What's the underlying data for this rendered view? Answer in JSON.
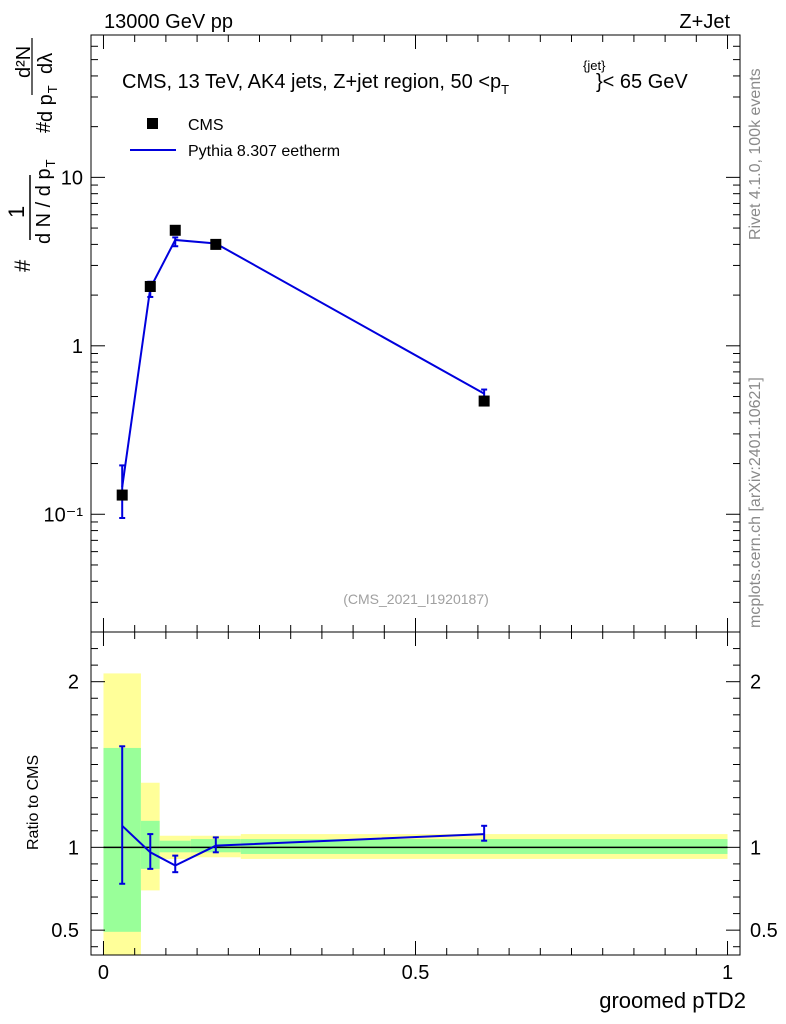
{
  "header": {
    "energy": "13000 GeV pp",
    "process": "Z+Jet"
  },
  "side_labels": {
    "rivet": "Rivet 4.1.0,  100k events",
    "site": "mcplots.cern.ch [arXiv:2401.10621]"
  },
  "chart_data": [
    {
      "type": "scatter",
      "title": "CMS, 13 TeV, AK4 jets, Z+jet region, 50 <p",
      "title_sub": "T",
      "title_sup": "{jet}",
      "title_end": "}< 65 GeV",
      "ylabel_parts": {
        "hash1": "#",
        "one": "1",
        "denom": "d N / d p",
        "denom_sub": "T",
        "hash2": "#",
        "num_d2N": "d²N",
        "den_dpt": "d p",
        "den_dpt_sub": "T",
        "den_dl": "dλ"
      },
      "yscale": "log",
      "ylim": [
        0.02,
        70
      ],
      "xlim": [
        -0.02,
        1.02
      ],
      "yticks": [
        {
          "value": 10,
          "label": "10"
        },
        {
          "value": 1,
          "label": "1"
        },
        {
          "value": 0.1,
          "label": "10⁻¹"
        }
      ],
      "watermark": "(CMS_2021_I1920187)",
      "legend": [
        {
          "name": "CMS",
          "marker": "square",
          "color": "#000000"
        },
        {
          "name": "Pythia 8.307 eetherm",
          "marker": "line",
          "color": "#0000dd"
        }
      ],
      "series": [
        {
          "name": "CMS",
          "x": [
            0.03,
            0.075,
            0.115,
            0.18,
            0.61
          ],
          "y": [
            0.13,
            2.25,
            4.85,
            4.0,
            0.47
          ]
        },
        {
          "name": "Pythia 8.307 eetherm",
          "x": [
            0.03,
            0.075,
            0.115,
            0.18,
            0.61
          ],
          "y": [
            0.145,
            2.2,
            4.25,
            4.05,
            0.52
          ],
          "err_lo": [
            0.095,
            1.95,
            3.9,
            3.85,
            0.48
          ],
          "err_hi": [
            0.195,
            2.4,
            4.4,
            4.15,
            0.55
          ]
        }
      ]
    },
    {
      "type": "line",
      "ylabel": "Ratio to CMS",
      "xlabel": "groomed pTD2",
      "xlim": [
        -0.02,
        1.02
      ],
      "ylim": [
        0.35,
        2.3
      ],
      "xticks": [
        {
          "value": 0,
          "label": "0"
        },
        {
          "value": 0.5,
          "label": "0.5"
        },
        {
          "value": 1,
          "label": "1"
        }
      ],
      "yticks": [
        {
          "value": 2,
          "label": "2"
        },
        {
          "value": 1,
          "label": "1"
        },
        {
          "value": 0.5,
          "label": "0.5"
        }
      ],
      "bands": [
        {
          "x0": 0.0,
          "x1": 0.06,
          "yellow": [
            0.35,
            2.05
          ],
          "green": [
            0.49,
            1.6
          ]
        },
        {
          "x0": 0.06,
          "x1": 0.09,
          "yellow": [
            0.74,
            1.39
          ],
          "green": [
            0.87,
            1.16
          ]
        },
        {
          "x0": 0.09,
          "x1": 0.14,
          "yellow": [
            0.93,
            1.07
          ],
          "green": [
            0.97,
            1.04
          ]
        },
        {
          "x0": 0.14,
          "x1": 0.22,
          "yellow": [
            0.94,
            1.07
          ],
          "green": [
            0.97,
            1.05
          ]
        },
        {
          "x0": 0.22,
          "x1": 1.0,
          "yellow": [
            0.93,
            1.08
          ],
          "green": [
            0.96,
            1.05
          ]
        }
      ],
      "reference": 1,
      "series": [
        {
          "name": "Pythia 8.307 eetherm",
          "x": [
            0.03,
            0.075,
            0.115,
            0.18,
            0.61
          ],
          "y": [
            1.13,
            0.97,
            0.89,
            1.01,
            1.08
          ],
          "err_lo": [
            0.78,
            0.87,
            0.85,
            0.97,
            1.04
          ],
          "err_hi": [
            1.61,
            1.08,
            0.95,
            1.06,
            1.13
          ]
        }
      ]
    }
  ]
}
